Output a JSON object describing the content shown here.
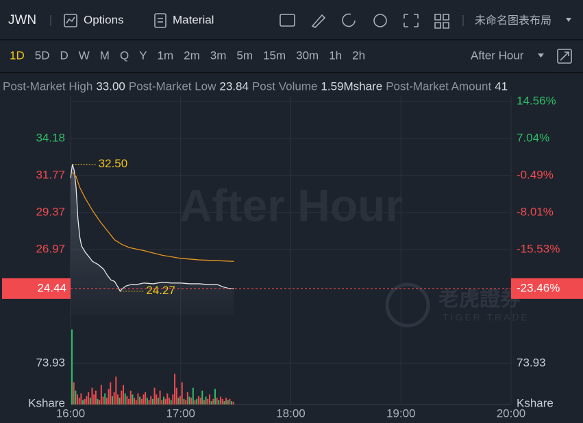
{
  "toolbar": {
    "symbol": "JWN",
    "options": "Options",
    "material": "Material",
    "layout": "未命名图表布局"
  },
  "periods": [
    "1D",
    "5D",
    "D",
    "W",
    "M",
    "Q",
    "Y",
    "1m",
    "2m",
    "3m",
    "5m",
    "15m",
    "30m",
    "1h",
    "2h"
  ],
  "session": "After Hour",
  "stats": [
    {
      "label": "Post-Market High",
      "value": "33.00"
    },
    {
      "label": "Post-Market Low",
      "value": "23.84"
    },
    {
      "label": "Post Volume",
      "value": "1.59Mshare"
    },
    {
      "label": "Post-Market Amount",
      "value": "41"
    }
  ],
  "chart_data": {
    "type": "line",
    "watermark": "After Hour",
    "brand": "老虎證券",
    "brand_sub": "TIGER TRADE",
    "xlim": [
      0,
      240
    ],
    "xticks": [
      {
        "value": 0,
        "label": "16:00"
      },
      {
        "value": 60,
        "label": "17:00"
      },
      {
        "value": 120,
        "label": "18:00"
      },
      {
        "value": 180,
        "label": "19:00"
      },
      {
        "value": 240,
        "label": "20:00"
      }
    ],
    "ylim": [
      22.7,
      36.58
    ],
    "yticks": [
      34.18,
      31.77,
      29.37,
      26.97
    ],
    "y2lim": [
      -28.9,
      14.56
    ],
    "y2ticks": [
      {
        "value": 14.56,
        "label": "14.56%"
      },
      {
        "value": 7.04,
        "label": "7.04%"
      },
      {
        "value": -0.49,
        "label": "-0.49%"
      },
      {
        "value": -8.01,
        "label": "-8.01%"
      },
      {
        "value": -15.53,
        "label": "-15.53%"
      }
    ],
    "last_price": 24.44,
    "last_change": {
      "value": -23.46,
      "label": "-23.46%"
    },
    "last_color": "#f04a4f",
    "annotations": [
      {
        "x": 1,
        "y": 32.5,
        "label": "32.50"
      },
      {
        "x": 27,
        "y": 24.27,
        "label": "24.27"
      }
    ],
    "annotation_color": "#f0c419",
    "series": [
      {
        "color": "#e6e6e6",
        "x": [
          0,
          1,
          2,
          3,
          4,
          5,
          6,
          8,
          10,
          12,
          15,
          18,
          20,
          22,
          24,
          26,
          27,
          28,
          30,
          33,
          36,
          40,
          45,
          50,
          55,
          60,
          65,
          70,
          75,
          80,
          83,
          86,
          89
        ],
        "values": [
          31.6,
          32.5,
          32.1,
          31.0,
          29.0,
          27.8,
          27.2,
          26.8,
          26.5,
          26.2,
          26.0,
          25.7,
          25.3,
          25.0,
          24.9,
          24.5,
          24.27,
          24.4,
          24.6,
          24.7,
          24.7,
          24.8,
          24.75,
          24.85,
          24.8,
          24.8,
          24.75,
          24.75,
          24.7,
          24.7,
          24.55,
          24.45,
          24.44
        ]
      },
      {
        "color": "#e8951e",
        "x": [
          1,
          3,
          5,
          8,
          12,
          16,
          20,
          24,
          28,
          32,
          40,
          50,
          60,
          70,
          80,
          89
        ],
        "values": [
          32.0,
          31.7,
          31.0,
          30.3,
          29.5,
          28.8,
          28.2,
          27.6,
          27.3,
          27.1,
          26.9,
          26.6,
          26.4,
          26.3,
          26.25,
          26.2
        ]
      }
    ],
    "volume": {
      "ylim": [
        0,
        147.86
      ],
      "yticks": [
        73.93
      ],
      "unit": "Kshare",
      "values": [
        135,
        40,
        25,
        18,
        12,
        20,
        8,
        10,
        15,
        22,
        12,
        30,
        18,
        25,
        10,
        8,
        35,
        14,
        20,
        12,
        28,
        40,
        15,
        22,
        50,
        18,
        12,
        25,
        35,
        20,
        15,
        10,
        25,
        18,
        12,
        8,
        20,
        14,
        10,
        18,
        22,
        12,
        8,
        15,
        10,
        30,
        18,
        12,
        25,
        8,
        14,
        10,
        20,
        12,
        8,
        18,
        55,
        30,
        12,
        15,
        40,
        10,
        8,
        22,
        14,
        12,
        30,
        8,
        10,
        15,
        12,
        25,
        8,
        14,
        10,
        18,
        6,
        10,
        28,
        12,
        8,
        14,
        10,
        6,
        12,
        8,
        10,
        6,
        5
      ],
      "colors": [
        "#2ebd65",
        "#f04a4f",
        "#2ebd65",
        "#f04a4f",
        "#f04a4f",
        "#f04a4f",
        "#2ebd65",
        "#f04a4f",
        "#f04a4f",
        "#f04a4f",
        "#2ebd65",
        "#f04a4f",
        "#f04a4f",
        "#f04a4f",
        "#2ebd65",
        "#f04a4f",
        "#f04a4f",
        "#f04a4f",
        "#2ebd65",
        "#f04a4f",
        "#f04a4f",
        "#f04a4f",
        "#2ebd65",
        "#f04a4f",
        "#f04a4f",
        "#f04a4f",
        "#2ebd65",
        "#f04a4f",
        "#f04a4f",
        "#2ebd65",
        "#f04a4f",
        "#f04a4f",
        "#f04a4f",
        "#2ebd65",
        "#f04a4f",
        "#f04a4f",
        "#f04a4f",
        "#2ebd65",
        "#f04a4f",
        "#f04a4f",
        "#f04a4f",
        "#2ebd65",
        "#f04a4f",
        "#f04a4f",
        "#2ebd65",
        "#f04a4f",
        "#f04a4f",
        "#2ebd65",
        "#f04a4f",
        "#f04a4f",
        "#2ebd65",
        "#f04a4f",
        "#f04a4f",
        "#f04a4f",
        "#2ebd65",
        "#f04a4f",
        "#f04a4f",
        "#f04a4f",
        "#2ebd65",
        "#f04a4f",
        "#f04a4f",
        "#2ebd65",
        "#f04a4f",
        "#f04a4f",
        "#2ebd65",
        "#f04a4f",
        "#2ebd65",
        "#f04a4f",
        "#2ebd65",
        "#f04a4f",
        "#f04a4f",
        "#2ebd65",
        "#f04a4f",
        "#2ebd65",
        "#f04a4f",
        "#f04a4f",
        "#2ebd65",
        "#f04a4f",
        "#2ebd65",
        "#f04a4f",
        "#2ebd65",
        "#f04a4f",
        "#f04a4f",
        "#2ebd65",
        "#f04a4f",
        "#2ebd65",
        "#f04a4f",
        "#2ebd65",
        "#f04a4f"
      ]
    }
  }
}
